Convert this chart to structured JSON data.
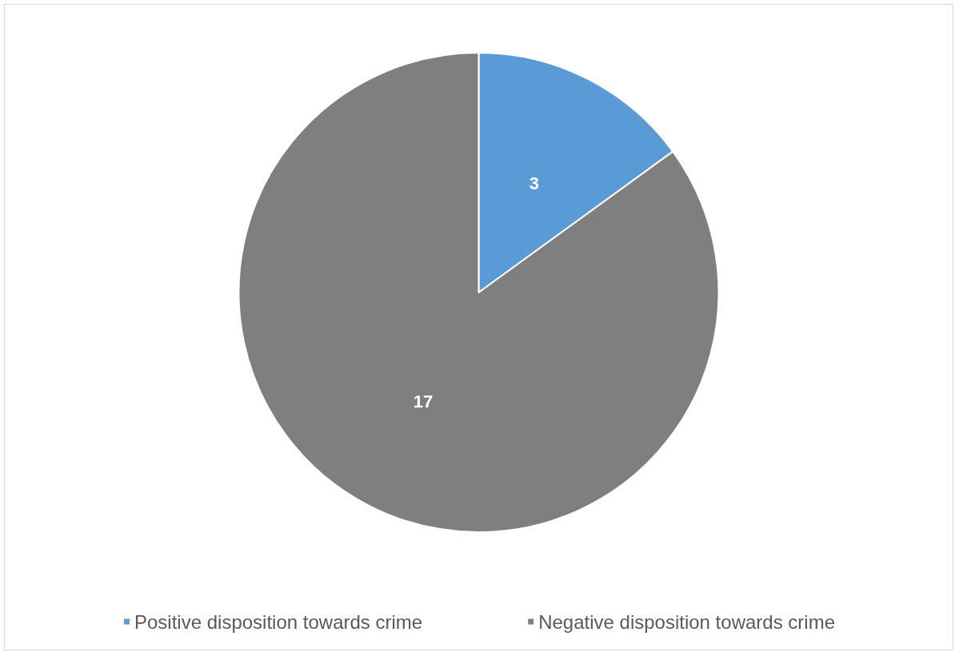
{
  "chart_data": {
    "type": "pie",
    "categories": [
      "Positive disposition towards crime",
      "Negative disposition towards crime"
    ],
    "values": [
      3,
      17
    ],
    "colors": [
      "#5b9bd5",
      "#7f7f7f"
    ],
    "data_labels": true,
    "legend": "bottom"
  }
}
